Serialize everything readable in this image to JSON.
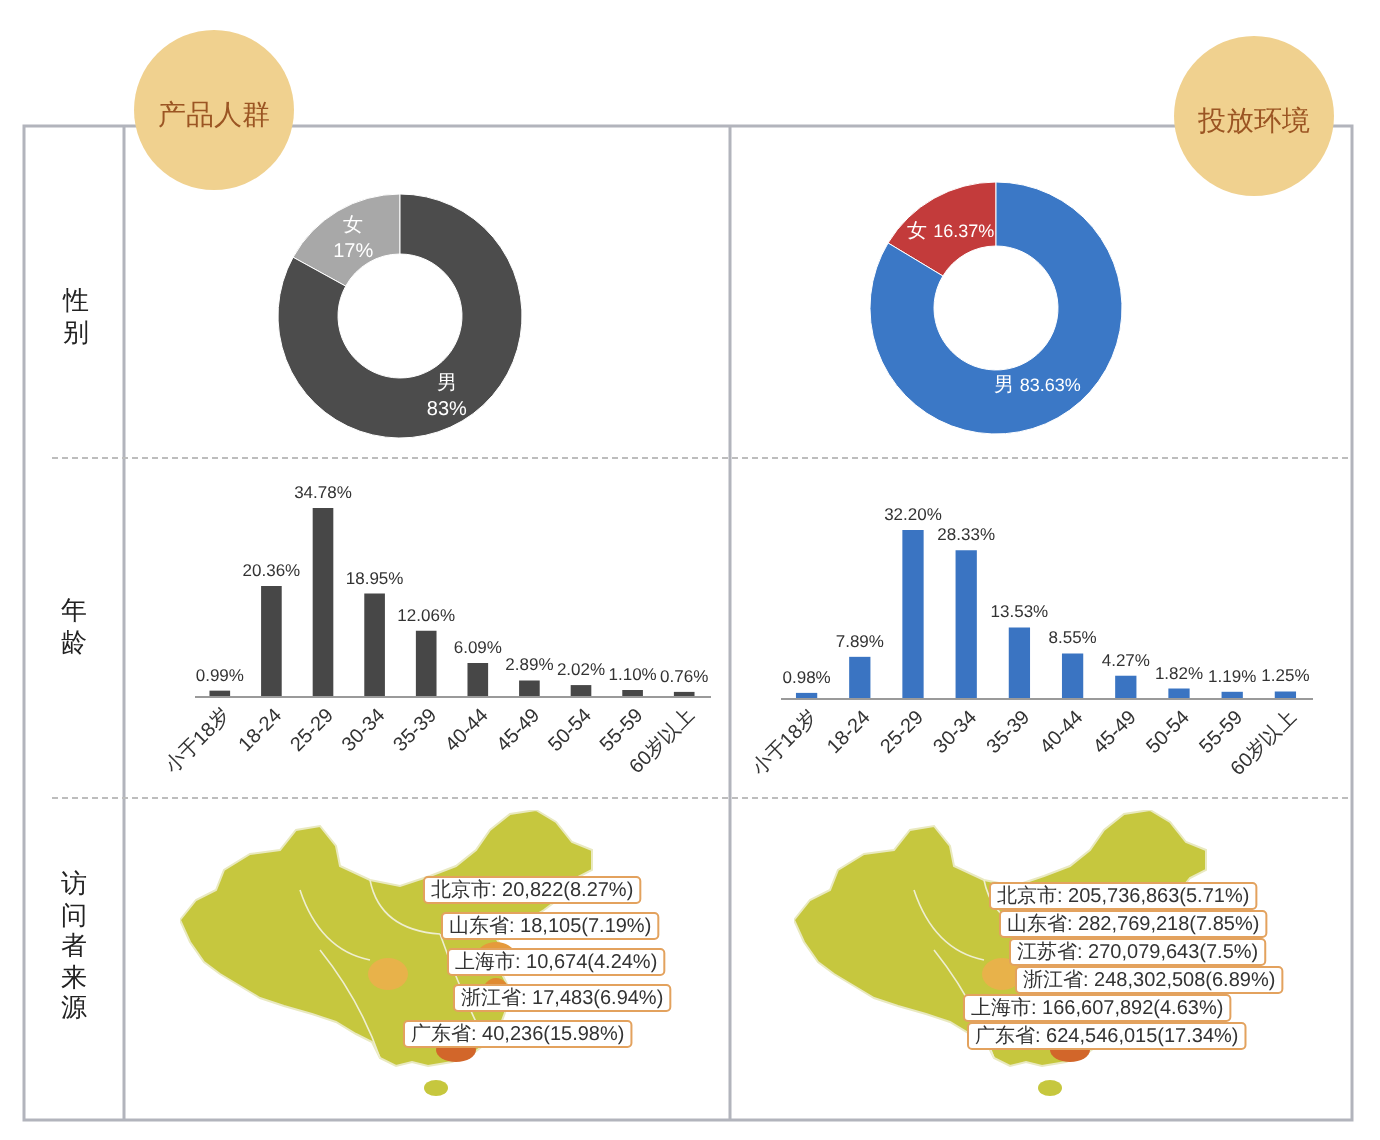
{
  "chart_data": [
    {
      "type": "donut",
      "title": "产品人群",
      "ylabel": "性别",
      "categories": [
        "女",
        "男"
      ],
      "values": [
        17,
        83
      ],
      "colors": [
        "#a8a8a8",
        "#4c4c4c"
      ],
      "value_labels": [
        "17%",
        "83%"
      ]
    },
    {
      "type": "donut",
      "title": "投放环境",
      "categories": [
        "女",
        "男"
      ],
      "values": [
        16.37,
        83.63
      ],
      "colors": [
        "#c33b3b",
        "#3b78c6"
      ],
      "value_labels": [
        "16.37%",
        "83.63%"
      ]
    },
    {
      "type": "bar",
      "ylabel": "年龄",
      "categories": [
        "小于18岁",
        "18-24",
        "25-29",
        "30-34",
        "35-39",
        "40-44",
        "45-49",
        "50-54",
        "55-59",
        "60岁以上"
      ],
      "values": [
        0.99,
        20.36,
        34.78,
        18.95,
        12.06,
        6.09,
        2.89,
        2.02,
        1.1,
        0.76
      ],
      "color": "#474747",
      "value_labels": [
        "0.99%",
        "20.36%",
        "34.78%",
        "18.95%",
        "12.06%",
        "6.09%",
        "2.89%",
        "2.02%",
        "1.10%",
        "0.76%"
      ]
    },
    {
      "type": "bar",
      "categories": [
        "小于18岁",
        "18-24",
        "25-29",
        "30-34",
        "35-39",
        "40-44",
        "45-49",
        "50-54",
        "55-59",
        "60岁以上"
      ],
      "values": [
        0.98,
        7.89,
        32.2,
        28.33,
        13.53,
        8.55,
        4.27,
        1.82,
        1.19,
        1.25
      ],
      "color": "#3a74c2",
      "value_labels": [
        "0.98%",
        "7.89%",
        "32.20%",
        "28.33%",
        "13.53%",
        "8.55%",
        "4.27%",
        "1.82%",
        "1.19%",
        "1.25%"
      ]
    },
    {
      "type": "other",
      "ylabel": "访问者来源",
      "annotations": [
        "北京市: 20,822(8.27%)",
        "山东省: 18,105(7.19%)",
        "上海市: 10,674(4.24%)",
        "浙江省: 17,483(6.94%)",
        "广东省: 40,236(15.98%)"
      ]
    },
    {
      "type": "other",
      "annotations": [
        "北京市: 205,736,863(5.71%)",
        "山东省: 282,769,218(7.85%)",
        "江苏省: 270,079,643(7.5%)",
        "浙江省: 248,302,508(6.89%)",
        "上海市: 166,607,892(4.63%)",
        "广东省: 624,546,015(17.34%)"
      ]
    }
  ]
}
